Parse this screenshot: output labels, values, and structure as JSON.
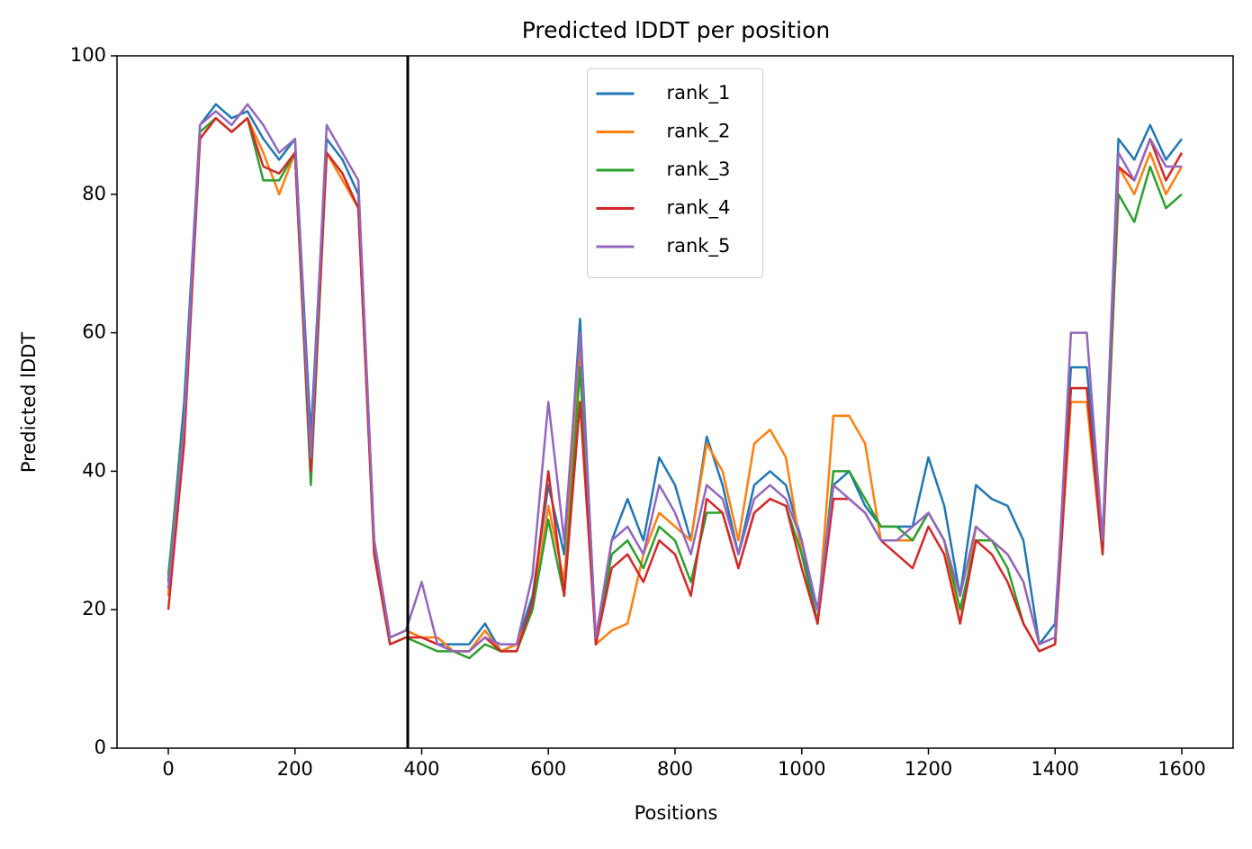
{
  "chart_data": {
    "type": "line",
    "title": "Predicted lDDT per position",
    "xlabel": "Positions",
    "ylabel": "Predicted lDDT",
    "x": [
      0,
      25,
      50,
      75,
      100,
      125,
      150,
      175,
      200,
      225,
      250,
      275,
      300,
      325,
      350,
      375,
      400,
      425,
      450,
      475,
      500,
      525,
      550,
      575,
      600,
      625,
      650,
      675,
      700,
      725,
      750,
      775,
      800,
      825,
      850,
      875,
      900,
      925,
      950,
      975,
      1000,
      1025,
      1050,
      1075,
      1100,
      1125,
      1150,
      1175,
      1200,
      1225,
      1250,
      1275,
      1300,
      1325,
      1350,
      1375,
      1400,
      1425,
      1450,
      1475,
      1500,
      1525,
      1550,
      1575,
      1600
    ],
    "series": [
      {
        "name": "rank_1",
        "color": "#1f77b4",
        "values": [
          24,
          50,
          90,
          93,
          91,
          92,
          88,
          85,
          88,
          45,
          88,
          85,
          80,
          30,
          16,
          17,
          16,
          15,
          15,
          15,
          18,
          14,
          15,
          22,
          38,
          28,
          62,
          15,
          30,
          36,
          30,
          42,
          38,
          30,
          45,
          38,
          28,
          38,
          40,
          38,
          30,
          18,
          38,
          40,
          35,
          32,
          32,
          32,
          42,
          35,
          22,
          38,
          36,
          35,
          30,
          15,
          18,
          55,
          55,
          30,
          88,
          85,
          90,
          85,
          88
        ]
      },
      {
        "name": "rank_2",
        "color": "#ff7f0e",
        "values": [
          22,
          46,
          88,
          91,
          89,
          91,
          86,
          80,
          86,
          40,
          86,
          82,
          78,
          30,
          16,
          17,
          16,
          16,
          14,
          14,
          17,
          14,
          15,
          20,
          35,
          24,
          58,
          15,
          17,
          18,
          28,
          34,
          32,
          30,
          44,
          40,
          30,
          44,
          46,
          42,
          28,
          18,
          48,
          48,
          44,
          30,
          30,
          30,
          34,
          30,
          18,
          32,
          30,
          28,
          24,
          15,
          16,
          50,
          50,
          28,
          84,
          80,
          86,
          80,
          84
        ]
      },
      {
        "name": "rank_3",
        "color": "#2ca02c",
        "values": [
          25,
          48,
          89,
          91,
          89,
          91,
          82,
          82,
          86,
          38,
          86,
          83,
          78,
          28,
          15,
          16,
          15,
          14,
          14,
          13,
          15,
          14,
          14,
          20,
          33,
          22,
          55,
          15,
          28,
          30,
          26,
          32,
          30,
          24,
          34,
          34,
          26,
          34,
          36,
          35,
          28,
          18,
          40,
          40,
          36,
          32,
          32,
          30,
          34,
          30,
          20,
          30,
          30,
          26,
          18,
          14,
          15,
          52,
          52,
          28,
          80,
          76,
          84,
          78,
          80
        ]
      },
      {
        "name": "rank_4",
        "color": "#d62728",
        "values": [
          20,
          44,
          88,
          91,
          89,
          91,
          84,
          83,
          86,
          40,
          86,
          83,
          78,
          28,
          15,
          16,
          16,
          15,
          14,
          14,
          16,
          14,
          14,
          21,
          40,
          22,
          50,
          15,
          26,
          28,
          24,
          30,
          28,
          22,
          36,
          34,
          26,
          34,
          36,
          35,
          26,
          18,
          36,
          36,
          34,
          30,
          28,
          26,
          32,
          28,
          18,
          30,
          28,
          24,
          18,
          14,
          15,
          52,
          52,
          28,
          84,
          82,
          88,
          82,
          86
        ]
      },
      {
        "name": "rank_5",
        "color": "#9467bd",
        "values": [
          23,
          47,
          90,
          92,
          90,
          93,
          90,
          86,
          88,
          42,
          90,
          86,
          82,
          30,
          16,
          17,
          24,
          15,
          14,
          14,
          16,
          15,
          15,
          25,
          50,
          30,
          60,
          16,
          30,
          32,
          28,
          38,
          34,
          28,
          38,
          36,
          28,
          36,
          38,
          36,
          30,
          20,
          38,
          36,
          34,
          30,
          30,
          32,
          34,
          30,
          22,
          32,
          30,
          28,
          24,
          15,
          16,
          60,
          60,
          30,
          86,
          82,
          88,
          84,
          84
        ]
      }
    ],
    "xlim": [
      -81,
      1681
    ],
    "ylim": [
      0,
      100
    ],
    "xticks": [
      0,
      200,
      400,
      600,
      800,
      1000,
      1200,
      1400,
      1600
    ],
    "yticks": [
      0,
      20,
      40,
      60,
      80,
      100
    ],
    "vline": 378,
    "vline_color": "#000000",
    "legend": "upper center",
    "grid": false
  }
}
